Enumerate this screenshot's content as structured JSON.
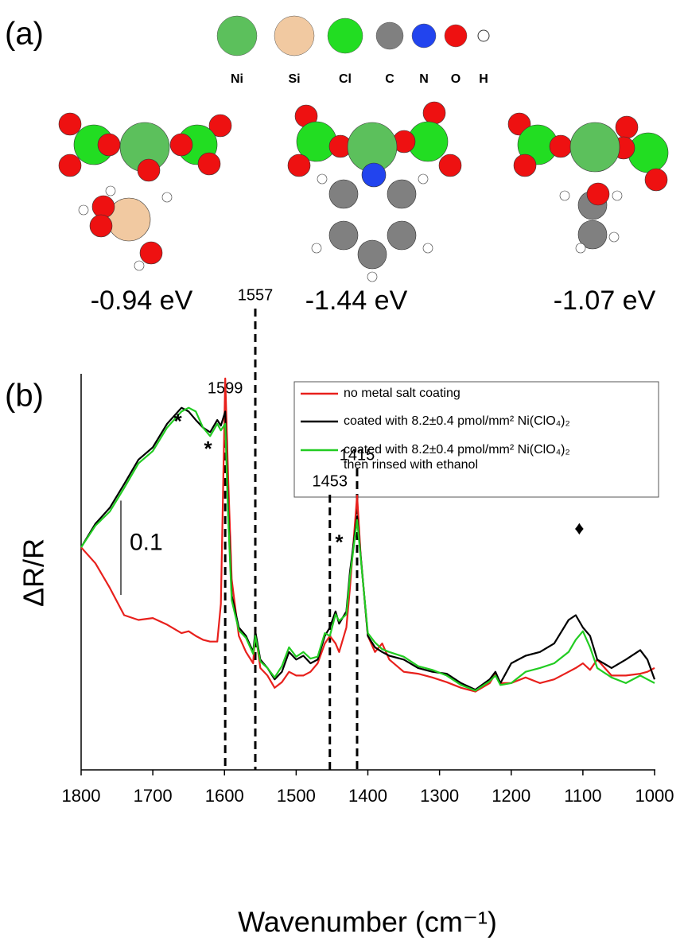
{
  "panel_a": {
    "label": "(a)",
    "atoms": [
      {
        "symbol": "Ni",
        "color": "#5cc05c"
      },
      {
        "symbol": "Si",
        "color": "#f1c9a1"
      },
      {
        "symbol": "Cl",
        "color": "#22dd22"
      },
      {
        "symbol": "C",
        "color": "#808080"
      },
      {
        "symbol": "N",
        "color": "#2244ee"
      },
      {
        "symbol": "O",
        "color": "#ee1111"
      },
      {
        "symbol": "H",
        "color": "#ffffff"
      }
    ],
    "energies": [
      "-0.94 eV",
      "-1.44 eV",
      "-1.07 eV"
    ]
  },
  "chart_data": {
    "type": "line",
    "panel_label": "(b)",
    "xlabel": "Wavenumber (cm⁻¹)",
    "ylabel": "ΔR/R",
    "xlim": [
      1800,
      1000
    ],
    "xticks": [
      1800,
      1700,
      1600,
      1500,
      1400,
      1300,
      1200,
      1100,
      1000
    ],
    "ylim": [
      0,
      0.42
    ],
    "scale_bar": 0.1,
    "peak_lines": [
      1599,
      1557,
      1453,
      1415
    ],
    "markers": [
      {
        "text": "*",
        "x": 1665,
        "y": 0.373
      },
      {
        "text": "*",
        "x": 1623,
        "y": 0.344
      },
      {
        "text": "*",
        "x": 1440,
        "y": 0.245
      },
      {
        "text": "♦",
        "x": 1105,
        "y": 0.255
      }
    ],
    "x": [
      1800,
      1780,
      1760,
      1740,
      1720,
      1700,
      1680,
      1660,
      1650,
      1640,
      1630,
      1620,
      1610,
      1605,
      1599,
      1595,
      1590,
      1580,
      1570,
      1560,
      1557,
      1550,
      1540,
      1530,
      1520,
      1510,
      1500,
      1490,
      1480,
      1470,
      1460,
      1453,
      1445,
      1440,
      1430,
      1425,
      1415,
      1410,
      1400,
      1390,
      1380,
      1370,
      1350,
      1330,
      1310,
      1290,
      1270,
      1250,
      1230,
      1222,
      1215,
      1200,
      1180,
      1160,
      1140,
      1120,
      1110,
      1100,
      1090,
      1080,
      1060,
      1040,
      1020,
      1010,
      1000
    ],
    "series": [
      {
        "name": "no metal salt coating",
        "color": "#e8201c",
        "values": [
          0.236,
          0.219,
          0.193,
          0.164,
          0.159,
          0.161,
          0.154,
          0.145,
          0.147,
          0.142,
          0.138,
          0.136,
          0.136,
          0.176,
          0.415,
          0.312,
          0.202,
          0.142,
          0.125,
          0.113,
          0.147,
          0.108,
          0.1,
          0.087,
          0.093,
          0.104,
          0.1,
          0.1,
          0.104,
          0.113,
          0.134,
          0.142,
          0.134,
          0.125,
          0.151,
          0.193,
          0.291,
          0.227,
          0.142,
          0.125,
          0.134,
          0.117,
          0.104,
          0.102,
          0.098,
          0.093,
          0.087,
          0.083,
          0.092,
          0.102,
          0.092,
          0.092,
          0.098,
          0.092,
          0.096,
          0.104,
          0.108,
          0.113,
          0.106,
          0.117,
          0.1,
          0.1,
          0.102,
          0.104,
          0.108
        ]
      },
      {
        "name": "coated with 8.2±0.4 pmol/mm² Ni(ClO₄)₂",
        "color": "#000000",
        "values": [
          0.236,
          0.261,
          0.278,
          0.303,
          0.329,
          0.342,
          0.367,
          0.384,
          0.38,
          0.371,
          0.363,
          0.358,
          0.371,
          0.365,
          0.38,
          0.278,
          0.185,
          0.151,
          0.142,
          0.125,
          0.147,
          0.117,
          0.108,
          0.096,
          0.104,
          0.125,
          0.117,
          0.121,
          0.113,
          0.117,
          0.142,
          0.151,
          0.168,
          0.155,
          0.168,
          0.21,
          0.269,
          0.227,
          0.142,
          0.13,
          0.125,
          0.121,
          0.117,
          0.108,
          0.104,
          0.102,
          0.092,
          0.085,
          0.096,
          0.104,
          0.092,
          0.113,
          0.121,
          0.125,
          0.134,
          0.159,
          0.164,
          0.151,
          0.142,
          0.117,
          0.108,
          0.117,
          0.127,
          0.117,
          0.096
        ]
      },
      {
        "name": "coated with 8.2±0.4 pmol/mm² Ni(ClO₄)₂\nthen rinsed with ethanol",
        "color": "#22cc22",
        "values": [
          0.236,
          0.259,
          0.274,
          0.299,
          0.325,
          0.338,
          0.363,
          0.38,
          0.384,
          0.38,
          0.363,
          0.354,
          0.367,
          0.36,
          0.367,
          0.269,
          0.18,
          0.148,
          0.14,
          0.123,
          0.142,
          0.115,
          0.108,
          0.098,
          0.11,
          0.13,
          0.12,
          0.125,
          0.118,
          0.12,
          0.145,
          0.142,
          0.165,
          0.158,
          0.165,
          0.205,
          0.265,
          0.225,
          0.145,
          0.135,
          0.128,
          0.125,
          0.12,
          0.11,
          0.106,
          0.1,
          0.09,
          0.084,
          0.094,
          0.1,
          0.09,
          0.092,
          0.104,
          0.108,
          0.113,
          0.125,
          0.138,
          0.147,
          0.13,
          0.108,
          0.098,
          0.092,
          0.1,
          0.096,
          0.092
        ]
      }
    ]
  }
}
